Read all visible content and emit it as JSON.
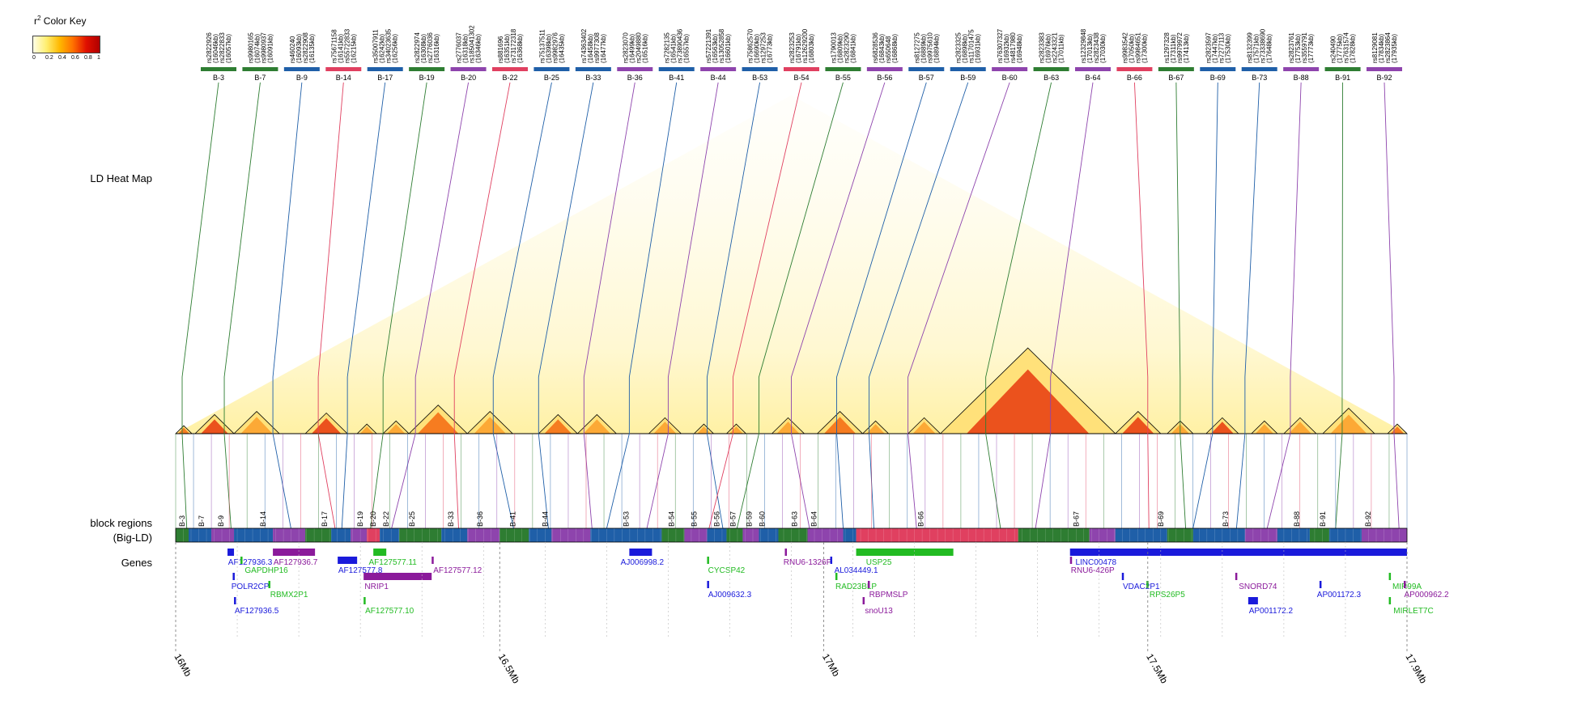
{
  "color_key": {
    "title_prefix": "r",
    "title_sup": "2",
    "title_suffix": " Color Key",
    "ticks": [
      "0",
      "0.2",
      "0.4",
      "0.6",
      "0.8",
      "1"
    ],
    "colors": [
      "#ffffe6",
      "#ffee70",
      "#ffb800",
      "#ff7000",
      "#e01000",
      "#b00000"
    ]
  },
  "row_labels": {
    "ld_heatmap": "LD Heat Map",
    "block_regions_1": "block regions",
    "block_regions_2": "(Big-LD)",
    "genes": "Genes"
  },
  "chart_data": {
    "type": "heatmap",
    "title": "",
    "x_axis": {
      "unit": "Mb",
      "range": [
        16.0,
        17.9
      ],
      "ticks": [
        {
          "pos": 16.0,
          "label": "16Mb"
        },
        {
          "pos": 16.5,
          "label": "16.5Mb"
        },
        {
          "pos": 17.0,
          "label": "17Mb"
        },
        {
          "pos": 17.5,
          "label": "17.5Mb"
        },
        {
          "pos": 17.9,
          "label": "17.9Mb"
        }
      ]
    },
    "tag_snps": [
      {
        "block": "B-3",
        "lines": [
          "rs2822926",
          "(16046kb)",
          "rs2822833",
          "(16057kb)"
        ],
        "color": "#2e7d32",
        "snp_pos": 16.01
      },
      {
        "block": "B-7",
        "lines": [
          "rs9980165",
          "(16074kb)",
          "rs9980937",
          "(16091kb)"
        ],
        "color": "#2e7d32",
        "snp_pos": 16.075
      },
      {
        "block": "B-9",
        "lines": [
          "rs460240",
          "(16093kb)",
          "rs2822908",
          "(16135kb)"
        ],
        "color": "#1f5fa8",
        "snp_pos": 16.15
      },
      {
        "block": "B-14",
        "lines": [
          "rs75671158",
          "(16141kb)",
          "rs55722833",
          "(16215kb)"
        ],
        "color": "#e04060",
        "snp_pos": 16.22
      },
      {
        "block": "B-17",
        "lines": [
          "rs35007911",
          "(16242kb)",
          "rs34023635",
          "(16256kb)"
        ],
        "color": "#1f5fa8",
        "snp_pos": 16.265
      },
      {
        "block": "B-19",
        "lines": [
          "rs2822974",
          "(16308kb)",
          "rs2776036",
          "(16316kb)"
        ],
        "color": "#2e7d32",
        "snp_pos": 16.32
      },
      {
        "block": "B-20",
        "lines": [
          "rs2776037",
          "(16318kb)",
          "rs185041302",
          "(16346kb)"
        ],
        "color": "#8e44ad",
        "snp_pos": 16.37
      },
      {
        "block": "B-22",
        "lines": [
          "rs881696",
          "(16351kb)",
          "rs73172318",
          "(16368kb)"
        ],
        "color": "#e04060",
        "snp_pos": 16.43
      },
      {
        "block": "B-25",
        "lines": [
          "rs75137511",
          "(16398kb)",
          "rs9982976",
          "(16435kb)"
        ],
        "color": "#1f5fa8",
        "snp_pos": 16.49
      },
      {
        "block": "B-33",
        "lines": [
          "rs74363402",
          "(16458kb)",
          "rs9977308",
          "(16477kb)"
        ],
        "color": "#1f5fa8",
        "snp_pos": 16.56
      },
      {
        "block": "B-36",
        "lines": [
          "rs2823070",
          "(16499kb)",
          "rs2049880",
          "(16516kb)"
        ],
        "color": "#8e44ad",
        "snp_pos": 16.63
      },
      {
        "block": "B-41",
        "lines": [
          "rs7282135",
          "(16541kb)",
          "rs73890436",
          "(16557kb)"
        ],
        "color": "#1f5fa8",
        "snp_pos": 16.7
      },
      {
        "block": "B-44",
        "lines": [
          "rs57221391",
          "(16563kb)",
          "rs13052858",
          "(16601kb)"
        ],
        "color": "#8e44ad",
        "snp_pos": 16.76
      },
      {
        "block": "B-53",
        "lines": [
          "rs75862570",
          "(16690kb)",
          "rs1297253",
          "(16773kb)"
        ],
        "color": "#1f5fa8",
        "snp_pos": 16.82
      },
      {
        "block": "B-54",
        "lines": [
          "rs2823253",
          "(16791kb)",
          "rs12629200",
          "(16803kb)"
        ],
        "color": "#e04060",
        "snp_pos": 16.86
      },
      {
        "block": "B-55",
        "lines": [
          "rs1790013",
          "(16809kb)",
          "rs2823290",
          "(16841kb)"
        ],
        "color": "#2e7d32",
        "snp_pos": 16.9
      },
      {
        "block": "B-56",
        "lines": [
          "rs6828536",
          "(16843kb)",
          "rs650648",
          "(16868kb)"
        ],
        "color": "#8e44ad",
        "snp_pos": 16.95
      },
      {
        "block": "B-57",
        "lines": [
          "rs8127275",
          "(16889kb)",
          "rs9975610",
          "(16894kb)"
        ],
        "color": "#1f5fa8",
        "snp_pos": 17.02
      },
      {
        "block": "B-59",
        "lines": [
          "rs2823325",
          "(16898kb)",
          "rs11701475",
          "(16931kb)"
        ],
        "color": "#1f5fa8",
        "snp_pos": 17.07
      },
      {
        "block": "B-60",
        "lines": [
          "rs76307327",
          "(16932kb)",
          "rs4817980",
          "(16948kb)"
        ],
        "color": "#8e44ad",
        "snp_pos": 17.13
      },
      {
        "block": "B-63",
        "lines": [
          "rs2823383",
          "(16976kb)",
          "rs2243321",
          "(17011kb)"
        ],
        "color": "#2e7d32",
        "snp_pos": 17.25
      },
      {
        "block": "B-64",
        "lines": [
          "rs12329848",
          "(17013kb)",
          "rs2823438",
          "(17030kb)"
        ],
        "color": "#8e44ad",
        "snp_pos": 17.35
      },
      {
        "block": "B-66",
        "lines": [
          "rs9983542",
          "(17050kb)",
          "rs9984651",
          "(17300kb)"
        ],
        "color": "#e04060",
        "snp_pos": 17.5
      },
      {
        "block": "B-67",
        "lines": [
          "rs1297328",
          "(17311kb)",
          "rs9979972",
          "(17413kb)"
        ],
        "color": "#2e7d32",
        "snp_pos": 17.55
      },
      {
        "block": "B-69",
        "lines": [
          "rs2823597",
          "(17447kb)",
          "rs7277113",
          "(17530kb)"
        ],
        "color": "#1f5fa8",
        "snp_pos": 17.6
      },
      {
        "block": "B-73",
        "lines": [
          "rs8132399",
          "(17571kb)",
          "rs73338690",
          "(17648kb)"
        ],
        "color": "#1f5fa8",
        "snp_pos": 17.65
      },
      {
        "block": "B-88",
        "lines": [
          "rs2823761",
          "(17753kb)",
          "rs3559791",
          "(17773kb)"
        ],
        "color": "#8e44ad",
        "snp_pos": 17.72
      },
      {
        "block": "B-91",
        "lines": [
          "rs240490",
          "(17775kb)",
          "rs7631574",
          "(17828kb)"
        ],
        "color": "#2e7d32",
        "snp_pos": 17.8
      },
      {
        "block": "B-92",
        "lines": [
          "rs8129081",
          "(17834kb)",
          "rs2823864",
          "(17935kb)"
        ],
        "color": "#8e44ad",
        "snp_pos": 17.88
      }
    ],
    "ld_triangles": [
      {
        "start": 16.0,
        "end": 16.025,
        "intensity": 0.7
      },
      {
        "start": 16.03,
        "end": 16.09,
        "intensity": 0.85
      },
      {
        "start": 16.09,
        "end": 16.16,
        "intensity": 0.6
      },
      {
        "start": 16.2,
        "end": 16.265,
        "intensity": 0.9
      },
      {
        "start": 16.28,
        "end": 16.31,
        "intensity": 0.5
      },
      {
        "start": 16.32,
        "end": 16.36,
        "intensity": 0.6
      },
      {
        "start": 16.36,
        "end": 16.45,
        "intensity": 0.8
      },
      {
        "start": 16.45,
        "end": 16.52,
        "intensity": 0.55
      },
      {
        "start": 16.56,
        "end": 16.62,
        "intensity": 0.75
      },
      {
        "start": 16.62,
        "end": 16.68,
        "intensity": 0.5
      },
      {
        "start": 16.73,
        "end": 16.78,
        "intensity": 0.6
      },
      {
        "start": 16.8,
        "end": 16.83,
        "intensity": 0.55
      },
      {
        "start": 16.85,
        "end": 16.88,
        "intensity": 0.5
      },
      {
        "start": 16.92,
        "end": 16.97,
        "intensity": 0.5
      },
      {
        "start": 16.99,
        "end": 17.06,
        "intensity": 0.7
      },
      {
        "start": 17.06,
        "end": 17.1,
        "intensity": 0.55
      },
      {
        "start": 17.13,
        "end": 17.18,
        "intensity": 0.55
      },
      {
        "start": 17.18,
        "end": 17.45,
        "intensity": 0.85
      },
      {
        "start": 17.45,
        "end": 17.52,
        "intensity": 0.9
      },
      {
        "start": 17.53,
        "end": 17.57,
        "intensity": 0.6
      },
      {
        "start": 17.59,
        "end": 17.64,
        "intensity": 0.85
      },
      {
        "start": 17.66,
        "end": 17.7,
        "intensity": 0.5
      },
      {
        "start": 17.71,
        "end": 17.76,
        "intensity": 0.5
      },
      {
        "start": 17.77,
        "end": 17.85,
        "intensity": 0.6
      },
      {
        "start": 17.87,
        "end": 17.9,
        "intensity": 0.7
      }
    ],
    "block_labels": [
      {
        "label": "B-3",
        "pos": 16.01
      },
      {
        "label": "B-7",
        "pos": 16.04
      },
      {
        "label": "B-9",
        "pos": 16.07
      },
      {
        "label": "B-14",
        "pos": 16.135
      },
      {
        "label": "B-17",
        "pos": 16.23
      },
      {
        "label": "B-19",
        "pos": 16.285
      },
      {
        "label": "B-20",
        "pos": 16.305
      },
      {
        "label": "B-22",
        "pos": 16.325
      },
      {
        "label": "B-25",
        "pos": 16.365
      },
      {
        "label": "B-33",
        "pos": 16.425
      },
      {
        "label": "B-36",
        "pos": 16.47
      },
      {
        "label": "B-41",
        "pos": 16.52
      },
      {
        "label": "B-44",
        "pos": 16.57
      },
      {
        "label": "B-53",
        "pos": 16.695
      },
      {
        "label": "B-54",
        "pos": 16.765
      },
      {
        "label": "B-55",
        "pos": 16.8
      },
      {
        "label": "B-56",
        "pos": 16.835
      },
      {
        "label": "B-57",
        "pos": 16.86
      },
      {
        "label": "B-59",
        "pos": 16.885
      },
      {
        "label": "B-60",
        "pos": 16.905
      },
      {
        "label": "B-63",
        "pos": 16.955
      },
      {
        "label": "B-64",
        "pos": 16.985
      },
      {
        "label": "B-66",
        "pos": 17.15
      },
      {
        "label": "B-67",
        "pos": 17.39
      },
      {
        "label": "B-69",
        "pos": 17.52
      },
      {
        "label": "B-73",
        "pos": 17.62
      },
      {
        "label": "B-88",
        "pos": 17.73
      },
      {
        "label": "B-91",
        "pos": 17.77
      },
      {
        "label": "B-92",
        "pos": 17.84
      }
    ],
    "block_segments": [
      {
        "start": 16.0,
        "end": 16.02,
        "color": "#2e7d32"
      },
      {
        "start": 16.02,
        "end": 16.055,
        "color": "#1f5fa8"
      },
      {
        "start": 16.055,
        "end": 16.09,
        "color": "#8e44ad"
      },
      {
        "start": 16.09,
        "end": 16.15,
        "color": "#1f5fa8"
      },
      {
        "start": 16.15,
        "end": 16.2,
        "color": "#8e44ad"
      },
      {
        "start": 16.2,
        "end": 16.24,
        "color": "#2e7d32"
      },
      {
        "start": 16.24,
        "end": 16.27,
        "color": "#1f5fa8"
      },
      {
        "start": 16.27,
        "end": 16.295,
        "color": "#8e44ad"
      },
      {
        "start": 16.295,
        "end": 16.315,
        "color": "#e04060"
      },
      {
        "start": 16.315,
        "end": 16.345,
        "color": "#1f5fa8"
      },
      {
        "start": 16.345,
        "end": 16.41,
        "color": "#2e7d32"
      },
      {
        "start": 16.41,
        "end": 16.45,
        "color": "#1f5fa8"
      },
      {
        "start": 16.45,
        "end": 16.5,
        "color": "#8e44ad"
      },
      {
        "start": 16.5,
        "end": 16.545,
        "color": "#2e7d32"
      },
      {
        "start": 16.545,
        "end": 16.58,
        "color": "#1f5fa8"
      },
      {
        "start": 16.58,
        "end": 16.64,
        "color": "#8e44ad"
      },
      {
        "start": 16.64,
        "end": 16.75,
        "color": "#1f5fa8"
      },
      {
        "start": 16.75,
        "end": 16.785,
        "color": "#2e7d32"
      },
      {
        "start": 16.785,
        "end": 16.82,
        "color": "#8e44ad"
      },
      {
        "start": 16.82,
        "end": 16.85,
        "color": "#1f5fa8"
      },
      {
        "start": 16.85,
        "end": 16.875,
        "color": "#2e7d32"
      },
      {
        "start": 16.875,
        "end": 16.9,
        "color": "#8e44ad"
      },
      {
        "start": 16.9,
        "end": 16.93,
        "color": "#1f5fa8"
      },
      {
        "start": 16.93,
        "end": 16.975,
        "color": "#2e7d32"
      },
      {
        "start": 16.975,
        "end": 17.03,
        "color": "#8e44ad"
      },
      {
        "start": 17.03,
        "end": 17.05,
        "color": "#1f5fa8"
      },
      {
        "start": 17.05,
        "end": 17.3,
        "color": "#e04060"
      },
      {
        "start": 17.3,
        "end": 17.41,
        "color": "#2e7d32"
      },
      {
        "start": 17.41,
        "end": 17.45,
        "color": "#8e44ad"
      },
      {
        "start": 17.45,
        "end": 17.53,
        "color": "#1f5fa8"
      },
      {
        "start": 17.53,
        "end": 17.57,
        "color": "#2e7d32"
      },
      {
        "start": 17.57,
        "end": 17.65,
        "color": "#1f5fa8"
      },
      {
        "start": 17.65,
        "end": 17.7,
        "color": "#8e44ad"
      },
      {
        "start": 17.7,
        "end": 17.75,
        "color": "#1f5fa8"
      },
      {
        "start": 17.75,
        "end": 17.78,
        "color": "#2e7d32"
      },
      {
        "start": 17.78,
        "end": 17.83,
        "color": "#1f5fa8"
      },
      {
        "start": 17.83,
        "end": 17.9,
        "color": "#8e44ad"
      }
    ],
    "genes": [
      {
        "name": "AF127936.3",
        "start": 16.08,
        "end": 16.09,
        "row": 0,
        "color": "#1a1adb",
        "label_pos": 16.115
      },
      {
        "name": "GAPDHP16",
        "start": 16.1,
        "end": 16.102,
        "row": 0.5,
        "color": "#22bb22",
        "label_pos": 16.14
      },
      {
        "name": "AF127936.7",
        "start": 16.15,
        "end": 16.215,
        "row": 0,
        "color": "#8b1a9b",
        "label_pos": 16.185
      },
      {
        "name": "AF127577.8",
        "start": 16.25,
        "end": 16.28,
        "row": 0.5,
        "color": "#1a1adb",
        "label_pos": 16.285
      },
      {
        "name": "AF127577.11",
        "start": 16.305,
        "end": 16.325,
        "row": 0,
        "color": "#22bb22",
        "label_pos": 16.335
      },
      {
        "name": "AF127577.12",
        "start": 16.395,
        "end": 16.397,
        "row": 0.5,
        "color": "#8b1a9b",
        "label_pos": 16.435
      },
      {
        "name": "AJ006998.2",
        "start": 16.7,
        "end": 16.735,
        "row": 0,
        "color": "#1a1adb",
        "label_pos": 16.72
      },
      {
        "name": "CYCSP42",
        "start": 16.82,
        "end": 16.822,
        "row": 0.5,
        "color": "#22bb22",
        "label_pos": 16.85
      },
      {
        "name": "RNU6-1326P",
        "start": 16.94,
        "end": 16.942,
        "row": 0,
        "color": "#8b1a9b",
        "label_pos": 16.975
      },
      {
        "name": "AL034449.1",
        "start": 17.01,
        "end": 17.012,
        "row": 0.5,
        "color": "#1a1adb",
        "label_pos": 17.05
      },
      {
        "name": "USP25",
        "start": 17.05,
        "end": 17.2,
        "row": 0,
        "color": "#22bb22",
        "label_pos": 17.085
      },
      {
        "name": "RNU6-426P",
        "start": 17.38,
        "end": 17.382,
        "row": 0.5,
        "color": "#8b1a9b",
        "label_pos": 17.415
      },
      {
        "name": "LINC00478",
        "start": 17.38,
        "end": 17.9,
        "row": 0,
        "color": "#1a1adb",
        "label_pos": 17.42
      },
      {
        "name": "POLR2CP",
        "start": 16.088,
        "end": 16.09,
        "row": 1.5,
        "color": "#1a1adb",
        "label_pos": 16.115
      },
      {
        "name": "RBMX2P1",
        "start": 16.143,
        "end": 16.145,
        "row": 2,
        "color": "#22bb22",
        "label_pos": 16.175
      },
      {
        "name": "NRIP1",
        "start": 16.29,
        "end": 16.395,
        "row": 1.5,
        "color": "#8b1a9b",
        "label_pos": 16.31
      },
      {
        "name": "AJ009632.3",
        "start": 16.82,
        "end": 16.822,
        "row": 2,
        "color": "#1a1adb",
        "label_pos": 16.855
      },
      {
        "name": "RAD23BLP",
        "start": 17.018,
        "end": 17.02,
        "row": 1.5,
        "color": "#22bb22",
        "label_pos": 17.05
      },
      {
        "name": "RBPMSLP",
        "start": 17.068,
        "end": 17.07,
        "row": 2,
        "color": "#8b1a9b",
        "label_pos": 17.1
      },
      {
        "name": "VDAC2P1",
        "start": 17.46,
        "end": 17.462,
        "row": 1.5,
        "color": "#1a1adb",
        "label_pos": 17.49
      },
      {
        "name": "RPS26P5",
        "start": 17.498,
        "end": 17.5,
        "row": 2,
        "color": "#22bb22",
        "label_pos": 17.53
      },
      {
        "name": "SNORD74",
        "start": 17.635,
        "end": 17.637,
        "row": 1.5,
        "color": "#8b1a9b",
        "label_pos": 17.67
      },
      {
        "name": "AP001172.3",
        "start": 17.765,
        "end": 17.767,
        "row": 2,
        "color": "#1a1adb",
        "label_pos": 17.795
      },
      {
        "name": "MIR99A",
        "start": 17.872,
        "end": 17.874,
        "row": 1.5,
        "color": "#22bb22",
        "label_pos": 17.9
      },
      {
        "name": "AP000962.2",
        "start": 17.895,
        "end": 17.897,
        "row": 2,
        "color": "#8b1a9b",
        "label_pos": 17.93
      },
      {
        "name": "AF127936.5",
        "start": 16.09,
        "end": 16.092,
        "row": 3,
        "color": "#1a1adb",
        "label_pos": 16.125
      },
      {
        "name": "AF127577.10",
        "start": 16.29,
        "end": 16.293,
        "row": 3,
        "color": "#22bb22",
        "label_pos": 16.33
      },
      {
        "name": "snoU13",
        "start": 17.06,
        "end": 17.062,
        "row": 3,
        "color": "#8b1a9b",
        "label_pos": 17.085
      },
      {
        "name": "AP001172.2",
        "start": 17.655,
        "end": 17.67,
        "row": 3,
        "color": "#1a1adb",
        "label_pos": 17.69
      },
      {
        "name": "MIRLET7C",
        "start": 17.872,
        "end": 17.874,
        "row": 3,
        "color": "#22bb22",
        "label_pos": 17.91
      }
    ]
  }
}
